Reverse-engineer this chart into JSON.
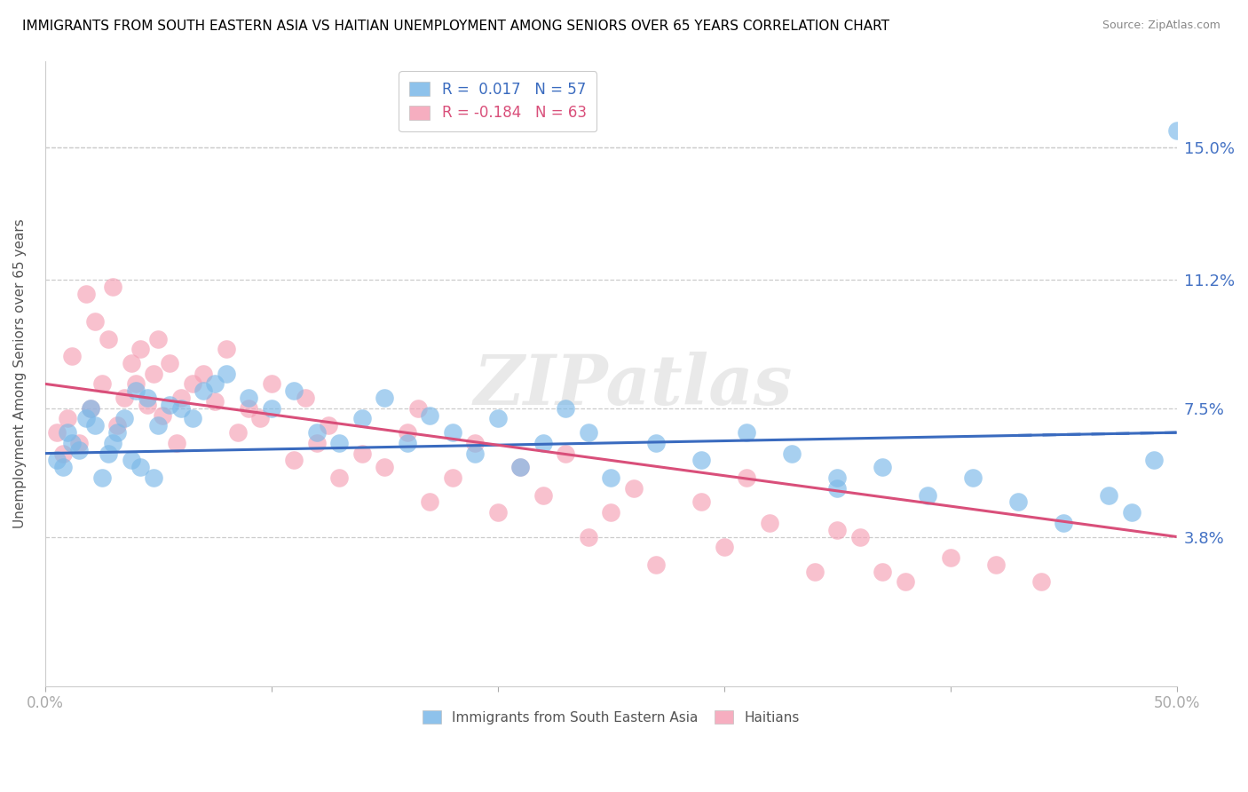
{
  "title": "IMMIGRANTS FROM SOUTH EASTERN ASIA VS HAITIAN UNEMPLOYMENT AMONG SENIORS OVER 65 YEARS CORRELATION CHART",
  "source": "Source: ZipAtlas.com",
  "ylabel": "Unemployment Among Seniors over 65 years",
  "xlim": [
    0.0,
    0.5
  ],
  "ylim": [
    -0.005,
    0.175
  ],
  "ytick_labels_right": [
    "15.0%",
    "11.2%",
    "7.5%",
    "3.8%"
  ],
  "ytick_vals_right": [
    0.15,
    0.112,
    0.075,
    0.038
  ],
  "blue_R": 0.017,
  "blue_N": 57,
  "pink_R": -0.184,
  "pink_N": 63,
  "blue_color": "#7ab8e8",
  "pink_color": "#f5a0b5",
  "blue_line_color": "#3a6bbf",
  "pink_line_color": "#d94f7a",
  "blue_line_style": "solid",
  "pink_line_style": "solid",
  "watermark": "ZIPatlas",
  "legend_label_blue": "Immigrants from South Eastern Asia",
  "legend_label_pink": "Haitians",
  "blue_scatter_x": [
    0.005,
    0.008,
    0.01,
    0.012,
    0.015,
    0.018,
    0.02,
    0.022,
    0.025,
    0.028,
    0.03,
    0.032,
    0.035,
    0.038,
    0.04,
    0.042,
    0.045,
    0.048,
    0.05,
    0.055,
    0.06,
    0.065,
    0.07,
    0.075,
    0.08,
    0.09,
    0.1,
    0.11,
    0.12,
    0.13,
    0.14,
    0.15,
    0.16,
    0.17,
    0.18,
    0.19,
    0.2,
    0.21,
    0.22,
    0.23,
    0.24,
    0.25,
    0.27,
    0.29,
    0.31,
    0.33,
    0.35,
    0.37,
    0.39,
    0.41,
    0.43,
    0.45,
    0.47,
    0.48,
    0.49,
    0.5,
    0.35
  ],
  "blue_scatter_y": [
    0.06,
    0.058,
    0.068,
    0.065,
    0.063,
    0.072,
    0.075,
    0.07,
    0.055,
    0.062,
    0.065,
    0.068,
    0.072,
    0.06,
    0.08,
    0.058,
    0.078,
    0.055,
    0.07,
    0.076,
    0.075,
    0.072,
    0.08,
    0.082,
    0.085,
    0.078,
    0.075,
    0.08,
    0.068,
    0.065,
    0.072,
    0.078,
    0.065,
    0.073,
    0.068,
    0.062,
    0.072,
    0.058,
    0.065,
    0.075,
    0.068,
    0.055,
    0.065,
    0.06,
    0.068,
    0.062,
    0.055,
    0.058,
    0.05,
    0.055,
    0.048,
    0.042,
    0.05,
    0.045,
    0.06,
    0.155,
    0.052
  ],
  "pink_scatter_x": [
    0.005,
    0.008,
    0.01,
    0.012,
    0.015,
    0.018,
    0.02,
    0.022,
    0.025,
    0.028,
    0.03,
    0.032,
    0.035,
    0.038,
    0.04,
    0.042,
    0.045,
    0.048,
    0.05,
    0.052,
    0.055,
    0.058,
    0.06,
    0.065,
    0.07,
    0.075,
    0.08,
    0.085,
    0.09,
    0.095,
    0.1,
    0.11,
    0.115,
    0.12,
    0.125,
    0.13,
    0.14,
    0.15,
    0.16,
    0.165,
    0.17,
    0.18,
    0.19,
    0.2,
    0.21,
    0.22,
    0.23,
    0.24,
    0.25,
    0.26,
    0.27,
    0.3,
    0.32,
    0.34,
    0.36,
    0.38,
    0.4,
    0.42,
    0.44,
    0.29,
    0.31,
    0.35,
    0.37
  ],
  "pink_scatter_y": [
    0.068,
    0.062,
    0.072,
    0.09,
    0.065,
    0.108,
    0.075,
    0.1,
    0.082,
    0.095,
    0.11,
    0.07,
    0.078,
    0.088,
    0.082,
    0.092,
    0.076,
    0.085,
    0.095,
    0.073,
    0.088,
    0.065,
    0.078,
    0.082,
    0.085,
    0.077,
    0.092,
    0.068,
    0.075,
    0.072,
    0.082,
    0.06,
    0.078,
    0.065,
    0.07,
    0.055,
    0.062,
    0.058,
    0.068,
    0.075,
    0.048,
    0.055,
    0.065,
    0.045,
    0.058,
    0.05,
    0.062,
    0.038,
    0.045,
    0.052,
    0.03,
    0.035,
    0.042,
    0.028,
    0.038,
    0.025,
    0.032,
    0.03,
    0.025,
    0.048,
    0.055,
    0.04,
    0.028
  ],
  "blue_line_x": [
    0.0,
    0.5
  ],
  "blue_line_y": [
    0.062,
    0.068
  ],
  "pink_line_x": [
    0.0,
    0.5
  ],
  "pink_line_y": [
    0.082,
    0.038
  ]
}
